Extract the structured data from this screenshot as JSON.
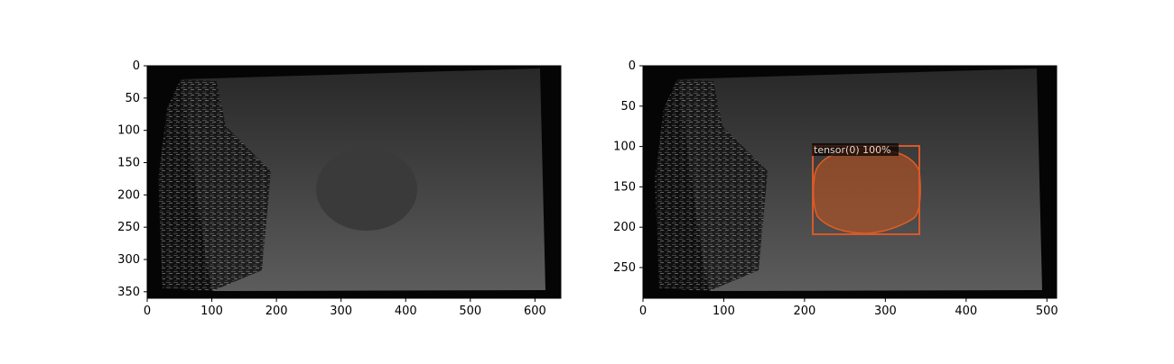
{
  "figure": {
    "background": "#ffffff",
    "panels": [
      {
        "id": "left",
        "xlim": [
          0,
          640
        ],
        "ylim": [
          360,
          0
        ],
        "xticks": [
          "0",
          "100",
          "200",
          "300",
          "400",
          "500",
          "600"
        ],
        "yticks": [
          "0",
          "50",
          "100",
          "150",
          "200",
          "250",
          "300",
          "350"
        ],
        "image_description_colors": {
          "border": "#050505",
          "bg_top": "#2a2a2a",
          "bg_bottom": "#5a5a5a",
          "blob": "#383838"
        }
      },
      {
        "id": "right",
        "xlim": [
          0,
          512
        ],
        "ylim": [
          288,
          0
        ],
        "xticks": [
          "0",
          "100",
          "200",
          "300",
          "400",
          "500"
        ],
        "yticks": [
          "0",
          "50",
          "100",
          "150",
          "200",
          "250"
        ],
        "detection": {
          "label": "tensor(0) 100%",
          "box": [
            210,
            100,
            342,
            208
          ],
          "mask_color": "#c8541e",
          "box_color": "#d9582a"
        }
      }
    ]
  }
}
